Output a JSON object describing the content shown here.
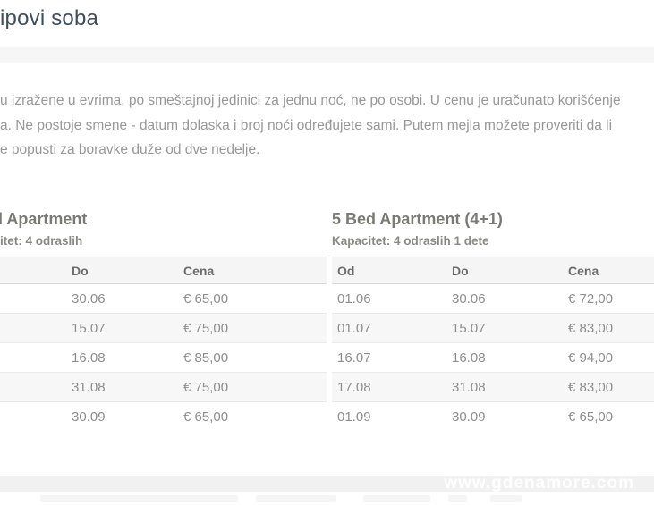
{
  "colors": {
    "title_text": "#3e4e61",
    "body_text": "#989898",
    "heading_text": "#7b7b75",
    "table_text": "#8e8e8e",
    "stripe_bg": "#f7f7f7",
    "band_bg": "#f1f1f1",
    "watermark_text": "#ffffff"
  },
  "page": {
    "title": "ipovi soba",
    "intro_lines": [
      "u izražene u evrima, po smeštajnoj jedinici za jednu noć, ne po osobi. U cenu je uračunato korišćenje",
      "a. Ne postoje smene - datum dolaska i broj noći određujete sami. Putem mejla možete proveriti da li",
      "e popusti za boravke duže od dve nedelje."
    ]
  },
  "room_types": [
    {
      "name": "d Apartment",
      "capacity": "itet: 4 odraslih",
      "columns": [
        "",
        "Do",
        "Cena"
      ],
      "rows": [
        [
          "",
          "30.06",
          "€ 65,00"
        ],
        [
          "",
          "15.07",
          "€ 75,00"
        ],
        [
          "",
          "16.08",
          "€ 85,00"
        ],
        [
          "",
          "31.08",
          "€ 75,00"
        ],
        [
          "",
          "30.09",
          "€ 65,00"
        ]
      ]
    },
    {
      "name": "5 Bed Apartment (4+1)",
      "capacity": "Kapacitet: 4 odraslih 1 dete",
      "columns": [
        "Od",
        "Do",
        "Cena"
      ],
      "rows": [
        [
          "01.06",
          "30.06",
          "€ 72,00"
        ],
        [
          "01.07",
          "15.07",
          "€ 83,00"
        ],
        [
          "16.07",
          "16.08",
          "€ 94,00"
        ],
        [
          "17.08",
          "31.08",
          "€ 83,00"
        ],
        [
          "01.09",
          "30.09",
          "€ 65,00"
        ]
      ]
    }
  ],
  "watermark": "www.gdenamore.com"
}
